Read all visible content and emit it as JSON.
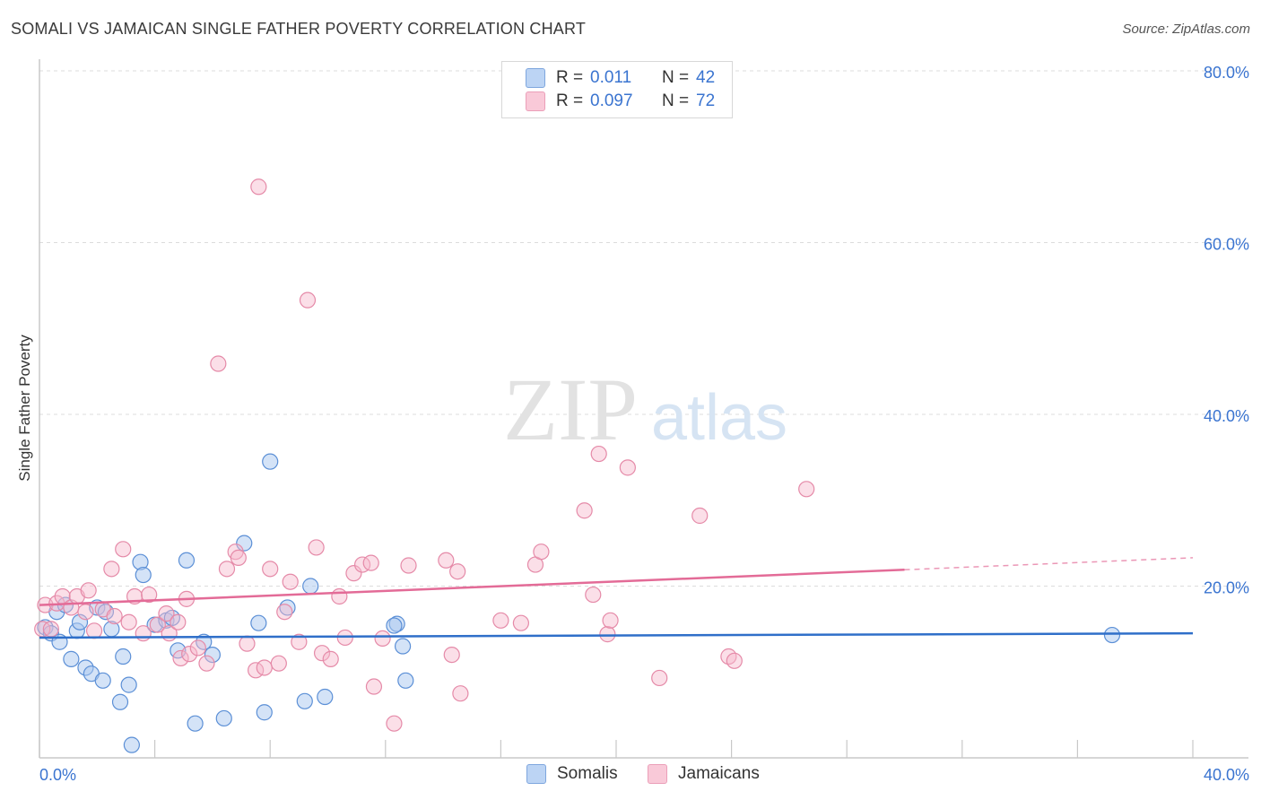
{
  "title": "SOMALI VS JAMAICAN SINGLE FATHER POVERTY CORRELATION CHART",
  "source": "Source: ZipAtlas.com",
  "watermark": {
    "zip": "ZIP",
    "atlas": "atlas"
  },
  "colors": {
    "somali_fill": "#a9c8f0",
    "somali_stroke": "#5b8fd6",
    "somali_line": "#2f6fc9",
    "jamaican_fill": "#f7b9cc",
    "jamaican_stroke": "#e58aa8",
    "jamaican_line": "#e36b97",
    "axis_label": "#3a74d0",
    "grid": "#dcdcdc"
  },
  "legend": {
    "rows": [
      {
        "r_label": "R =",
        "r_value": "0.011",
        "n_label": "N =",
        "n_value": "42"
      },
      {
        "r_label": "R =",
        "r_value": "0.097",
        "n_label": "N =",
        "n_value": "72"
      }
    ]
  },
  "chart_data": {
    "type": "scatter",
    "title": "SOMALI VS JAMAICAN SINGLE FATHER POVERTY CORRELATION CHART",
    "xlabel": "",
    "ylabel": "Single Father Poverty",
    "xlim": [
      0,
      40
    ],
    "ylim": [
      0,
      80
    ],
    "x_ticks_labeled": [
      "0.0%",
      "40.0%"
    ],
    "y_ticks": [
      20,
      40,
      60,
      80
    ],
    "y_tick_labels": [
      "20.0%",
      "40.0%",
      "60.0%",
      "80.0%"
    ],
    "grid": true,
    "legend_position": "top-center",
    "series": [
      {
        "name": "Somalis",
        "color": "#a9c8f0",
        "r": 0.011,
        "n": 42,
        "trend": {
          "x0": 0,
          "y0": 14.0,
          "x1": 40,
          "y1": 14.5,
          "dashed_from": null
        },
        "points": [
          [
            0.2,
            15.2
          ],
          [
            0.4,
            14.5
          ],
          [
            0.6,
            17.0
          ],
          [
            0.7,
            13.5
          ],
          [
            0.9,
            17.8
          ],
          [
            1.1,
            11.5
          ],
          [
            1.3,
            14.8
          ],
          [
            1.4,
            15.8
          ],
          [
            1.6,
            10.5
          ],
          [
            1.8,
            9.8
          ],
          [
            2.0,
            17.5
          ],
          [
            2.2,
            9.0
          ],
          [
            2.3,
            17.0
          ],
          [
            2.5,
            15.0
          ],
          [
            2.8,
            6.5
          ],
          [
            2.9,
            11.8
          ],
          [
            3.1,
            8.5
          ],
          [
            3.2,
            1.5
          ],
          [
            3.5,
            22.8
          ],
          [
            3.6,
            21.3
          ],
          [
            4.0,
            15.5
          ],
          [
            4.4,
            16.0
          ],
          [
            4.6,
            16.3
          ],
          [
            4.8,
            12.5
          ],
          [
            5.1,
            23.0
          ],
          [
            5.4,
            4.0
          ],
          [
            5.7,
            13.5
          ],
          [
            6.0,
            12.0
          ],
          [
            6.4,
            4.6
          ],
          [
            7.1,
            25.0
          ],
          [
            7.6,
            15.7
          ],
          [
            7.8,
            5.3
          ],
          [
            8.0,
            34.5
          ],
          [
            8.6,
            17.5
          ],
          [
            9.2,
            6.6
          ],
          [
            9.4,
            20.0
          ],
          [
            9.9,
            7.1
          ],
          [
            12.4,
            15.6
          ],
          [
            12.6,
            13.0
          ],
          [
            12.3,
            15.4
          ],
          [
            12.7,
            9.0
          ],
          [
            37.2,
            14.3
          ]
        ]
      },
      {
        "name": "Jamaicans",
        "color": "#f7b9cc",
        "r": 0.097,
        "n": 72,
        "trend": {
          "x0": 0,
          "y0": 17.8,
          "x1": 30.0,
          "y1": 21.9,
          "dashed_to": 40.0,
          "dashed_y": 23.3
        },
        "points": [
          [
            0.1,
            15.0
          ],
          [
            0.2,
            17.8
          ],
          [
            0.4,
            15.0
          ],
          [
            0.6,
            18.0
          ],
          [
            0.8,
            18.8
          ],
          [
            1.1,
            17.5
          ],
          [
            1.3,
            18.8
          ],
          [
            1.6,
            17.0
          ],
          [
            1.7,
            19.5
          ],
          [
            1.9,
            14.8
          ],
          [
            2.2,
            17.3
          ],
          [
            2.5,
            22.0
          ],
          [
            2.6,
            16.5
          ],
          [
            2.9,
            24.3
          ],
          [
            3.1,
            15.8
          ],
          [
            3.3,
            18.8
          ],
          [
            3.6,
            14.5
          ],
          [
            3.8,
            19.0
          ],
          [
            4.1,
            15.5
          ],
          [
            4.4,
            16.8
          ],
          [
            4.5,
            14.5
          ],
          [
            4.8,
            15.8
          ],
          [
            4.9,
            11.6
          ],
          [
            5.1,
            18.5
          ],
          [
            5.2,
            12.1
          ],
          [
            5.5,
            12.8
          ],
          [
            5.8,
            11.0
          ],
          [
            6.2,
            45.9
          ],
          [
            6.5,
            22.0
          ],
          [
            6.8,
            24.0
          ],
          [
            6.9,
            23.3
          ],
          [
            7.2,
            13.3
          ],
          [
            7.5,
            10.2
          ],
          [
            7.6,
            66.5
          ],
          [
            7.8,
            10.5
          ],
          [
            8.0,
            22.0
          ],
          [
            8.3,
            11.0
          ],
          [
            8.5,
            17.0
          ],
          [
            8.7,
            20.5
          ],
          [
            9.0,
            13.5
          ],
          [
            9.3,
            53.3
          ],
          [
            9.6,
            24.5
          ],
          [
            9.8,
            12.2
          ],
          [
            10.1,
            11.5
          ],
          [
            10.4,
            18.8
          ],
          [
            10.6,
            14.0
          ],
          [
            10.9,
            21.5
          ],
          [
            11.2,
            22.5
          ],
          [
            11.5,
            22.7
          ],
          [
            11.6,
            8.3
          ],
          [
            11.9,
            13.9
          ],
          [
            12.3,
            4.0
          ],
          [
            12.8,
            22.4
          ],
          [
            14.1,
            23.0
          ],
          [
            14.3,
            12.0
          ],
          [
            14.5,
            21.7
          ],
          [
            14.6,
            7.5
          ],
          [
            16.0,
            16.0
          ],
          [
            16.7,
            15.7
          ],
          [
            17.2,
            22.5
          ],
          [
            17.4,
            24.0
          ],
          [
            18.9,
            28.8
          ],
          [
            19.2,
            19.0
          ],
          [
            19.4,
            35.4
          ],
          [
            19.7,
            14.4
          ],
          [
            19.8,
            16.0
          ],
          [
            20.4,
            33.8
          ],
          [
            21.5,
            9.3
          ],
          [
            22.9,
            28.2
          ],
          [
            23.9,
            11.8
          ],
          [
            24.1,
            11.3
          ],
          [
            26.6,
            31.3
          ]
        ]
      }
    ]
  }
}
